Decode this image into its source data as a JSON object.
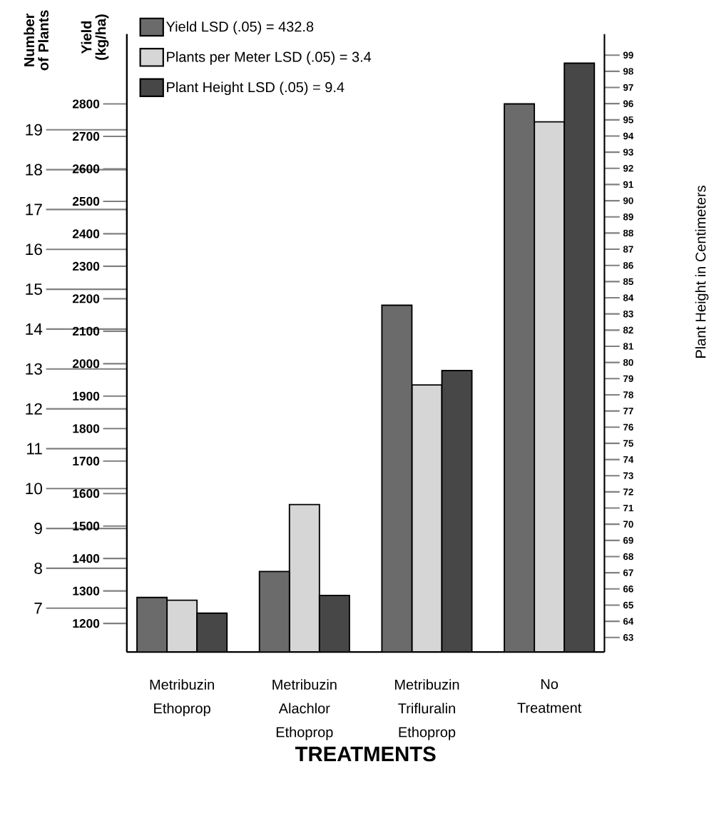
{
  "chart_data": {
    "type": "bar",
    "xlabel": "TREATMENTS",
    "ylabel": "Yield (kg/ha)",
    "y2label": "Plant Height in Centimeters",
    "y3label": "Number of Plants",
    "categories": [
      "Metribuzin Ethoprop",
      "Metribuzin Alachlor Ethoprop",
      "Metribuzin Trifluralin Ethoprop",
      "No Treatment"
    ],
    "series": [
      {
        "name": "Yield LSD (.05) = 432.8",
        "color": "#6b6b6b",
        "values": [
          1280,
          1360,
          2180,
          2800
        ]
      },
      {
        "name": "Plants per Meter LSD (.05) = 3.4",
        "color": "#d6d6d6",
        "axis": "y3",
        "values": [
          7.2,
          9.6,
          12.6,
          19.2
        ]
      },
      {
        "name": "Plant Height LSD (.05) = 9.4",
        "color": "#474747",
        "axis": "y2",
        "values": [
          64.5,
          65.6,
          79.5,
          98.5
        ]
      }
    ],
    "ylim": [
      1112,
      3015
    ],
    "yticks": [
      1200,
      1300,
      1400,
      1500,
      1600,
      1700,
      1800,
      1900,
      2000,
      2100,
      2200,
      2300,
      2400,
      2500,
      2600,
      2700,
      2800
    ],
    "y2lim": [
      62.1,
      100.3
    ],
    "y2ticks": [
      63,
      64,
      65,
      66,
      67,
      68,
      69,
      70,
      71,
      72,
      73,
      74,
      75,
      76,
      77,
      78,
      79,
      80,
      81,
      82,
      83,
      84,
      85,
      86,
      87,
      88,
      89,
      90,
      91,
      92,
      93,
      94,
      95,
      96,
      97,
      98,
      99
    ],
    "y3lim": [
      5.9,
      21.4
    ],
    "y3ticks": [
      7,
      8,
      9,
      10,
      11,
      12,
      13,
      14,
      15,
      16,
      17,
      18,
      19
    ],
    "legend": "top left"
  }
}
